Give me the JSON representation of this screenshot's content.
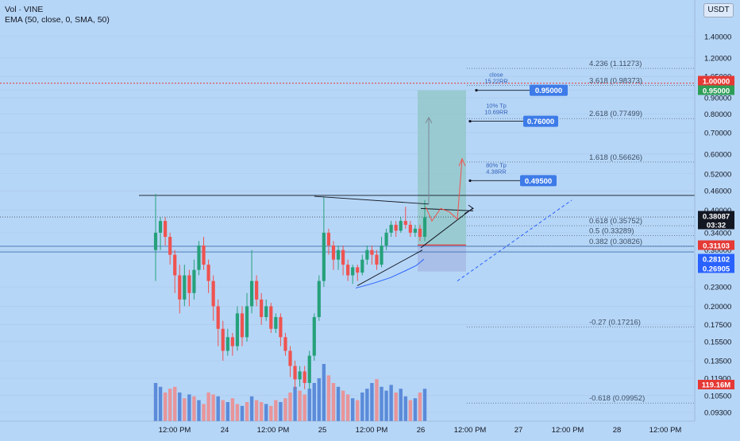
{
  "header": {
    "symbol_line": "Vol · VINE",
    "indicator_line": "EMA (50, close, 0, SMA, 50)"
  },
  "currency_button": "USDT",
  "colors": {
    "background": "#b6d6f7",
    "up_candle": "#26a17b",
    "down_candle": "#ef5350",
    "vol_up": "#5b8bd9",
    "vol_down": "#e8959a",
    "fib_line": "#3d4f66",
    "ema_line": "#2962ff",
    "target_zone": "#8fc6c4",
    "stop_zone": "#a7bde6"
  },
  "chart_data": {
    "type": "candlestick",
    "price_axis_labels": [
      "1.40000",
      "1.20000",
      "1.05000",
      "0.95000",
      "0.90000",
      "0.80000",
      "0.70000",
      "0.60000",
      "0.52000",
      "0.46000",
      "0.40000",
      "0.34000",
      "0.30000",
      "0.23000",
      "0.20000",
      "0.17500",
      "0.15500",
      "0.13500",
      "0.11900",
      "0.10500",
      "0.09300"
    ],
    "time_axis_labels": [
      "12:00 PM",
      "24",
      "12:00 PM",
      "25",
      "12:00 PM",
      "26",
      "12:00 PM",
      "27",
      "12:00 PM",
      "28",
      "12:00 PM"
    ],
    "price_badges": [
      {
        "text": "1.00000",
        "value": 1.0,
        "color": "#e53935"
      },
      {
        "text": "0.95000",
        "value": 0.95,
        "color": "#2e9e57"
      },
      {
        "text": "0.38087",
        "value": 0.38087,
        "color": "#131722"
      },
      {
        "text": "03:32",
        "value": 0.37,
        "color": "#131722"
      },
      {
        "text": "0.31103",
        "value": 0.31103,
        "color": "#e53935"
      },
      {
        "text": "0.28102",
        "value": 0.28102,
        "color": "#2962ff"
      },
      {
        "text": "0.26905",
        "value": 0.26905,
        "color": "#2962ff"
      }
    ],
    "volume_badge": "119.16M",
    "fib_levels": [
      {
        "text": "4.236 (1.11273)",
        "value": 1.11273
      },
      {
        "text": "3.618 (0.98373)",
        "value": 0.98373
      },
      {
        "text": "2.618 (0.77499)",
        "value": 0.77499
      },
      {
        "text": "1.618 (0.56626)",
        "value": 0.56626
      },
      {
        "text": "0.618 (0.35752)",
        "value": 0.35752
      },
      {
        "text": "0.5 (0.33289)",
        "value": 0.33289
      },
      {
        "text": "0.382 (0.30826)",
        "value": 0.30826
      },
      {
        "text": "-0.27 (0.17216)",
        "value": 0.17216
      },
      {
        "text": "-0.618 (0.09952)",
        "value": 0.09952
      }
    ],
    "targets": [
      {
        "label": "0.95000",
        "value": 0.95,
        "note1": "close",
        "note2": "15.22RR"
      },
      {
        "label": "0.76000",
        "value": 0.76,
        "note1": "10% Tp",
        "note2": "10.69RR"
      },
      {
        "label": "0.49500",
        "value": 0.495,
        "note1": "80% Tp",
        "note2": "4.38RR"
      }
    ],
    "horizontal_lines": [
      1.0,
      0.445,
      0.39,
      0.30826,
      0.296
    ],
    "candles": [
      [
        0.3,
        0.34,
        0.45,
        0.24
      ],
      [
        0.34,
        0.37,
        0.38,
        0.3
      ],
      [
        0.37,
        0.33,
        0.38,
        0.31
      ],
      [
        0.33,
        0.29,
        0.34,
        0.27
      ],
      [
        0.29,
        0.25,
        0.3,
        0.22
      ],
      [
        0.25,
        0.21,
        0.27,
        0.19
      ],
      [
        0.21,
        0.25,
        0.27,
        0.2
      ],
      [
        0.25,
        0.22,
        0.26,
        0.2
      ],
      [
        0.22,
        0.26,
        0.28,
        0.21
      ],
      [
        0.26,
        0.31,
        0.32,
        0.25
      ],
      [
        0.31,
        0.27,
        0.33,
        0.26
      ],
      [
        0.27,
        0.24,
        0.28,
        0.22
      ],
      [
        0.24,
        0.2,
        0.25,
        0.18
      ],
      [
        0.2,
        0.17,
        0.21,
        0.15
      ],
      [
        0.17,
        0.145,
        0.18,
        0.135
      ],
      [
        0.145,
        0.16,
        0.17,
        0.14
      ],
      [
        0.16,
        0.15,
        0.165,
        0.14
      ],
      [
        0.15,
        0.19,
        0.2,
        0.145
      ],
      [
        0.19,
        0.16,
        0.2,
        0.15
      ],
      [
        0.16,
        0.2,
        0.22,
        0.155
      ],
      [
        0.2,
        0.24,
        0.3,
        0.19
      ],
      [
        0.24,
        0.21,
        0.25,
        0.2
      ],
      [
        0.21,
        0.185,
        0.22,
        0.175
      ],
      [
        0.185,
        0.2,
        0.21,
        0.18
      ],
      [
        0.2,
        0.17,
        0.205,
        0.165
      ],
      [
        0.17,
        0.185,
        0.19,
        0.165
      ],
      [
        0.185,
        0.16,
        0.19,
        0.15
      ],
      [
        0.16,
        0.145,
        0.165,
        0.14
      ],
      [
        0.145,
        0.13,
        0.15,
        0.12
      ],
      [
        0.13,
        0.118,
        0.135,
        0.11
      ],
      [
        0.118,
        0.125,
        0.13,
        0.112
      ],
      [
        0.125,
        0.115,
        0.13,
        0.11
      ],
      [
        0.115,
        0.14,
        0.145,
        0.11
      ],
      [
        0.14,
        0.185,
        0.19,
        0.135
      ],
      [
        0.185,
        0.24,
        0.25,
        0.18
      ],
      [
        0.24,
        0.34,
        0.44,
        0.23
      ],
      [
        0.34,
        0.31,
        0.35,
        0.29
      ],
      [
        0.31,
        0.28,
        0.32,
        0.26
      ],
      [
        0.28,
        0.3,
        0.31,
        0.26
      ],
      [
        0.3,
        0.27,
        0.31,
        0.25
      ],
      [
        0.27,
        0.25,
        0.28,
        0.24
      ],
      [
        0.25,
        0.265,
        0.27,
        0.235
      ],
      [
        0.265,
        0.255,
        0.27,
        0.24
      ],
      [
        0.255,
        0.28,
        0.29,
        0.25
      ],
      [
        0.28,
        0.3,
        0.31,
        0.27
      ],
      [
        0.3,
        0.29,
        0.31,
        0.27
      ],
      [
        0.29,
        0.27,
        0.3,
        0.26
      ],
      [
        0.27,
        0.31,
        0.33,
        0.265
      ],
      [
        0.31,
        0.34,
        0.35,
        0.3
      ],
      [
        0.34,
        0.36,
        0.37,
        0.33
      ],
      [
        0.36,
        0.345,
        0.37,
        0.33
      ],
      [
        0.345,
        0.37,
        0.38,
        0.34
      ],
      [
        0.37,
        0.36,
        0.41,
        0.35
      ],
      [
        0.36,
        0.34,
        0.37,
        0.33
      ],
      [
        0.34,
        0.35,
        0.36,
        0.33
      ],
      [
        0.35,
        0.33,
        0.36,
        0.32
      ],
      [
        0.33,
        0.38,
        0.43,
        0.32
      ]
    ],
    "volumes": [
      [
        40,
        1
      ],
      [
        36,
        1
      ],
      [
        30,
        0
      ],
      [
        34,
        0
      ],
      [
        36,
        0
      ],
      [
        30,
        1
      ],
      [
        24,
        0
      ],
      [
        28,
        1
      ],
      [
        26,
        0
      ],
      [
        22,
        1
      ],
      [
        18,
        0
      ],
      [
        30,
        0
      ],
      [
        28,
        0
      ],
      [
        26,
        1
      ],
      [
        22,
        0
      ],
      [
        20,
        1
      ],
      [
        24,
        0
      ],
      [
        18,
        0
      ],
      [
        16,
        1
      ],
      [
        20,
        0
      ],
      [
        26,
        1
      ],
      [
        22,
        0
      ],
      [
        20,
        0
      ],
      [
        18,
        1
      ],
      [
        16,
        0
      ],
      [
        22,
        0
      ],
      [
        20,
        1
      ],
      [
        24,
        0
      ],
      [
        30,
        0
      ],
      [
        36,
        1
      ],
      [
        32,
        0
      ],
      [
        28,
        0
      ],
      [
        34,
        1
      ],
      [
        40,
        1
      ],
      [
        45,
        1
      ],
      [
        60,
        1
      ],
      [
        48,
        0
      ],
      [
        40,
        0
      ],
      [
        36,
        1
      ],
      [
        32,
        0
      ],
      [
        28,
        0
      ],
      [
        24,
        1
      ],
      [
        22,
        0
      ],
      [
        30,
        1
      ],
      [
        34,
        1
      ],
      [
        40,
        1
      ],
      [
        44,
        0
      ],
      [
        36,
        1
      ],
      [
        32,
        1
      ],
      [
        38,
        1
      ],
      [
        30,
        0
      ],
      [
        34,
        1
      ],
      [
        26,
        1
      ],
      [
        22,
        0
      ],
      [
        24,
        1
      ],
      [
        30,
        0
      ],
      [
        34,
        1
      ]
    ]
  }
}
